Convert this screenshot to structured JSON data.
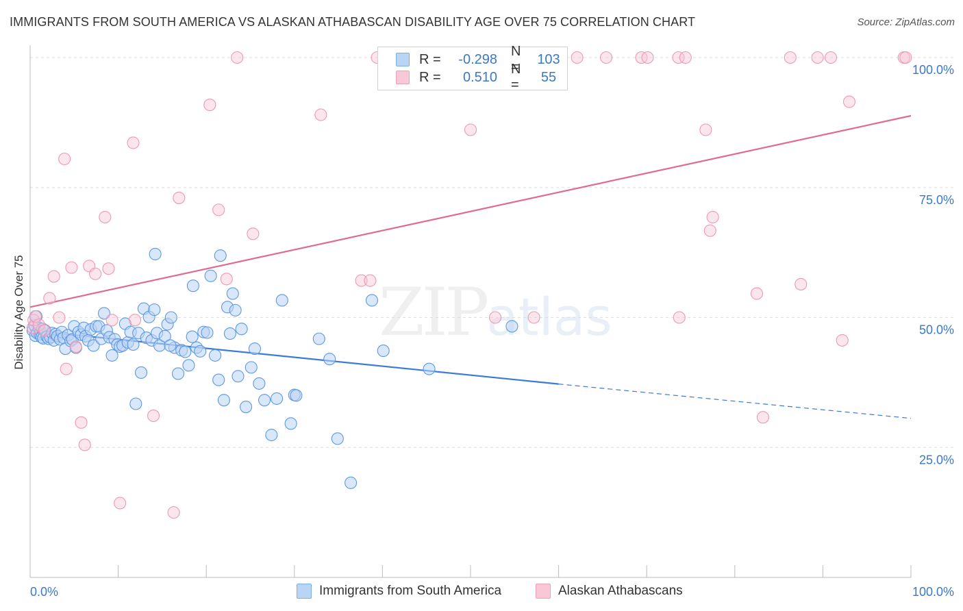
{
  "header": {
    "title": "IMMIGRANTS FROM SOUTH AMERICA VS ALASKAN ATHABASCAN DISABILITY AGE OVER 75 CORRELATION CHART",
    "source": "Source: ZipAtlas.com"
  },
  "watermark": {
    "zip": "ZIP",
    "atlas": "atlas"
  },
  "legend": {
    "r_label": "R =",
    "n_label": "N =",
    "series1": {
      "r": "-0.298",
      "n": "103",
      "color": "#7aaee8",
      "fill": "#bad4f5"
    },
    "series2": {
      "r": "0.510",
      "n": "55",
      "color": "#f0a0b8",
      "fill": "#f8c8d6"
    }
  },
  "bottom_legend": {
    "series1": "Immigrants from South America",
    "series2": "Alaskan Athabascans"
  },
  "colors": {
    "blue_line": "#3a7ad8",
    "pink_line": "#e06a90",
    "tick_text": "#3a78c8",
    "grid": "#dddddd"
  },
  "chart_data": {
    "type": "scatter",
    "title": "IMMIGRANTS FROM SOUTH AMERICA VS ALASKAN ATHABASCAN DISABILITY AGE OVER 75 CORRELATION CHART",
    "xlabel": "",
    "ylabel": "Disability Age Over 75",
    "xlim": [
      0,
      100
    ],
    "ylim": [
      0,
      100
    ],
    "x_tick_labels": [
      "0.0%",
      "100.0%"
    ],
    "y_ticks": [
      25,
      50,
      75,
      100
    ],
    "y_tick_labels": [
      "25.0%",
      "50.0%",
      "75.0%",
      "100.0%"
    ],
    "grid": true,
    "series": [
      {
        "name": "Immigrants from South America",
        "r": -0.298,
        "n": 103,
        "trend": {
          "x0": 0,
          "y0": 47.5,
          "x1": 60,
          "y1": 37.2,
          "dashed_to_x": 100,
          "dashed_to_y": 30.6
        },
        "points": [
          [
            0.3,
            47.5
          ],
          [
            0.5,
            48.5
          ],
          [
            0.6,
            46.5
          ],
          [
            0.7,
            50.2
          ],
          [
            0.8,
            47.0
          ],
          [
            1.0,
            48.0
          ],
          [
            1.1,
            46.8
          ],
          [
            1.2,
            47.3
          ],
          [
            1.3,
            46.2
          ],
          [
            1.4,
            47.8
          ],
          [
            1.5,
            46.0
          ],
          [
            1.7,
            47.5
          ],
          [
            1.9,
            46.3
          ],
          [
            2.1,
            45.9
          ],
          [
            2.3,
            46.2
          ],
          [
            2.5,
            47.0
          ],
          [
            2.7,
            45.6
          ],
          [
            2.9,
            46.8
          ],
          [
            3.1,
            46.4
          ],
          [
            3.4,
            45.8
          ],
          [
            3.6,
            47.2
          ],
          [
            3.8,
            46.1
          ],
          [
            4.0,
            44.0
          ],
          [
            4.3,
            46.6
          ],
          [
            4.6,
            45.5
          ],
          [
            4.8,
            45.8
          ],
          [
            5.0,
            48.3
          ],
          [
            5.2,
            44.2
          ],
          [
            5.5,
            47.2
          ],
          [
            5.8,
            46.7
          ],
          [
            6.1,
            48.0
          ],
          [
            6.3,
            46.4
          ],
          [
            6.6,
            45.6
          ],
          [
            6.9,
            47.7
          ],
          [
            7.2,
            44.6
          ],
          [
            7.5,
            48.3
          ],
          [
            7.8,
            48.3
          ],
          [
            8.1,
            45.9
          ],
          [
            8.4,
            50.8
          ],
          [
            8.7,
            47.5
          ],
          [
            9.0,
            46.2
          ],
          [
            9.3,
            42.7
          ],
          [
            9.6,
            45.8
          ],
          [
            9.9,
            44.8
          ],
          [
            10.2,
            44.4
          ],
          [
            10.5,
            44.6
          ],
          [
            10.8,
            48.8
          ],
          [
            11.1,
            45.2
          ],
          [
            11.4,
            47.2
          ],
          [
            11.7,
            44.8
          ],
          [
            12.0,
            33.4
          ],
          [
            12.3,
            47.0
          ],
          [
            12.6,
            39.4
          ],
          [
            12.9,
            51.7
          ],
          [
            13.2,
            46.1
          ],
          [
            13.5,
            50.1
          ],
          [
            13.8,
            45.6
          ],
          [
            14.1,
            51.5
          ],
          [
            14.4,
            47.0
          ],
          [
            14.7,
            44.6
          ],
          [
            14.2,
            62.2
          ],
          [
            15.3,
            46.4
          ],
          [
            15.6,
            48.7
          ],
          [
            16.0,
            50.0
          ],
          [
            16.4,
            44.2
          ],
          [
            16.8,
            39.2
          ],
          [
            17.2,
            43.7
          ],
          [
            17.6,
            43.4
          ],
          [
            18.0,
            40.8
          ],
          [
            18.4,
            46.3
          ],
          [
            15.9,
            44.6
          ],
          [
            18.5,
            56.1
          ],
          [
            18.9,
            44.2
          ],
          [
            19.3,
            43.5
          ],
          [
            19.7,
            47.2
          ],
          [
            20.1,
            47.1
          ],
          [
            20.5,
            58.0
          ],
          [
            21.0,
            42.7
          ],
          [
            21.4,
            38.0
          ],
          [
            21.6,
            61.9
          ],
          [
            22.0,
            34.1
          ],
          [
            22.4,
            52.0
          ],
          [
            22.7,
            46.9
          ],
          [
            23.0,
            54.6
          ],
          [
            23.3,
            51.4
          ],
          [
            23.6,
            38.7
          ],
          [
            24.0,
            47.8
          ],
          [
            24.5,
            32.8
          ],
          [
            25.1,
            40.4
          ],
          [
            25.5,
            44.0
          ],
          [
            26.0,
            37.3
          ],
          [
            26.6,
            34.1
          ],
          [
            27.4,
            27.4
          ],
          [
            28.0,
            34.4
          ],
          [
            28.6,
            53.3
          ],
          [
            29.6,
            29.6
          ],
          [
            30.0,
            35.1
          ],
          [
            30.2,
            35.0
          ],
          [
            32.8,
            45.9
          ],
          [
            34.0,
            42.0
          ],
          [
            34.9,
            26.7
          ],
          [
            36.4,
            18.2
          ],
          [
            38.8,
            53.3
          ],
          [
            40.1,
            43.6
          ],
          [
            45.3,
            40.1
          ],
          [
            54.7,
            48.3
          ]
        ]
      },
      {
        "name": "Alaskan Athabascans",
        "r": 0.51,
        "n": 55,
        "trend": {
          "x0": 0,
          "y0": 52.0,
          "x1": 100,
          "y1": 88.8
        },
        "points": [
          [
            0.3,
            48.0
          ],
          [
            0.4,
            49.5
          ],
          [
            0.6,
            50.2
          ],
          [
            1.0,
            48.6
          ],
          [
            1.6,
            47.5
          ],
          [
            2.2,
            53.7
          ],
          [
            2.7,
            57.9
          ],
          [
            3.3,
            50.0
          ],
          [
            3.9,
            80.5
          ],
          [
            4.1,
            40.1
          ],
          [
            4.7,
            59.6
          ],
          [
            5.2,
            44.4
          ],
          [
            5.8,
            29.8
          ],
          [
            6.2,
            25.5
          ],
          [
            6.7,
            59.9
          ],
          [
            7.4,
            58.4
          ],
          [
            8.5,
            69.3
          ],
          [
            8.9,
            59.4
          ],
          [
            9.3,
            49.5
          ],
          [
            10.2,
            14.3
          ],
          [
            11.7,
            83.6
          ],
          [
            11.9,
            49.5
          ],
          [
            14.0,
            31.1
          ],
          [
            16.3,
            12.5
          ],
          [
            16.9,
            73.0
          ],
          [
            20.4,
            90.9
          ],
          [
            21.4,
            70.7
          ],
          [
            22.3,
            57.4
          ],
          [
            23.5,
            100.0
          ],
          [
            25.3,
            66.1
          ],
          [
            33.0,
            89.0
          ],
          [
            37.6,
            57.1
          ],
          [
            38.6,
            57.1
          ],
          [
            39.4,
            100.0
          ],
          [
            50.0,
            86.1
          ],
          [
            52.8,
            50.0
          ],
          [
            57.2,
            50.0
          ],
          [
            62.1,
            100.0
          ],
          [
            65.4,
            100.0
          ],
          [
            69.4,
            100.0
          ],
          [
            70.1,
            100.0
          ],
          [
            73.6,
            100.0
          ],
          [
            74.4,
            100.0
          ],
          [
            73.7,
            50.0
          ],
          [
            76.7,
            86.1
          ],
          [
            77.2,
            66.7
          ],
          [
            77.5,
            69.3
          ],
          [
            82.5,
            54.6
          ],
          [
            83.2,
            30.8
          ],
          [
            86.3,
            100.0
          ],
          [
            87.5,
            56.4
          ],
          [
            89.4,
            100.0
          ],
          [
            90.9,
            100.0
          ],
          [
            92.2,
            45.6
          ],
          [
            93.0,
            91.5
          ],
          [
            99.2,
            100.0
          ],
          [
            99.4,
            100.0
          ]
        ]
      }
    ]
  }
}
